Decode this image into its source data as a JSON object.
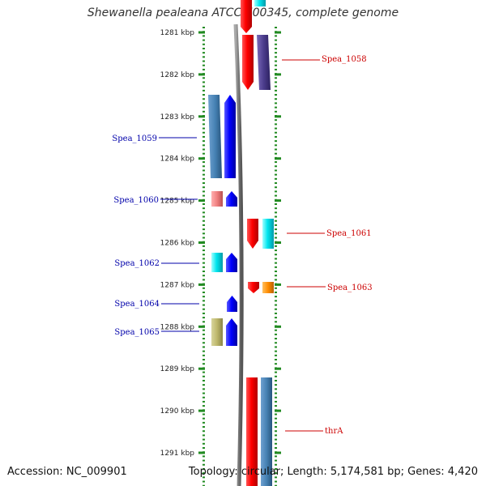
{
  "title": "Shewanella pealeana ATCC 700345, complete genome",
  "footer": {
    "accession": "Accession: NC_009901",
    "topology": "Topology: circular; Length: 5,174,581 bp; Genes: 4,420"
  },
  "scale": {
    "unit": "kbp",
    "ticks": [
      "1281 kbp",
      "1282 kbp",
      "1283 kbp",
      "1284 kbp",
      "1285 kbp",
      "1286 kbp",
      "1287 kbp",
      "1288 kbp",
      "1289 kbp",
      "1290 kbp",
      "1291 kbp"
    ]
  },
  "colors": {
    "tick": "#228B22",
    "forward_label": "#cc0000",
    "reverse_label": "#0000aa",
    "backbone": "#888888"
  },
  "genes": [
    {
      "label": "Spea_1058",
      "strand": "forward"
    },
    {
      "label": "Spea_1059",
      "strand": "reverse"
    },
    {
      "label": "Spea_1060",
      "strand": "reverse"
    },
    {
      "label": "Spea_1061",
      "strand": "forward"
    },
    {
      "label": "Spea_1062",
      "strand": "reverse"
    },
    {
      "label": "Spea_1063",
      "strand": "forward"
    },
    {
      "label": "Spea_1064",
      "strand": "reverse"
    },
    {
      "label": "Spea_1065",
      "strand": "reverse"
    },
    {
      "label": "thrA",
      "strand": "forward"
    }
  ]
}
